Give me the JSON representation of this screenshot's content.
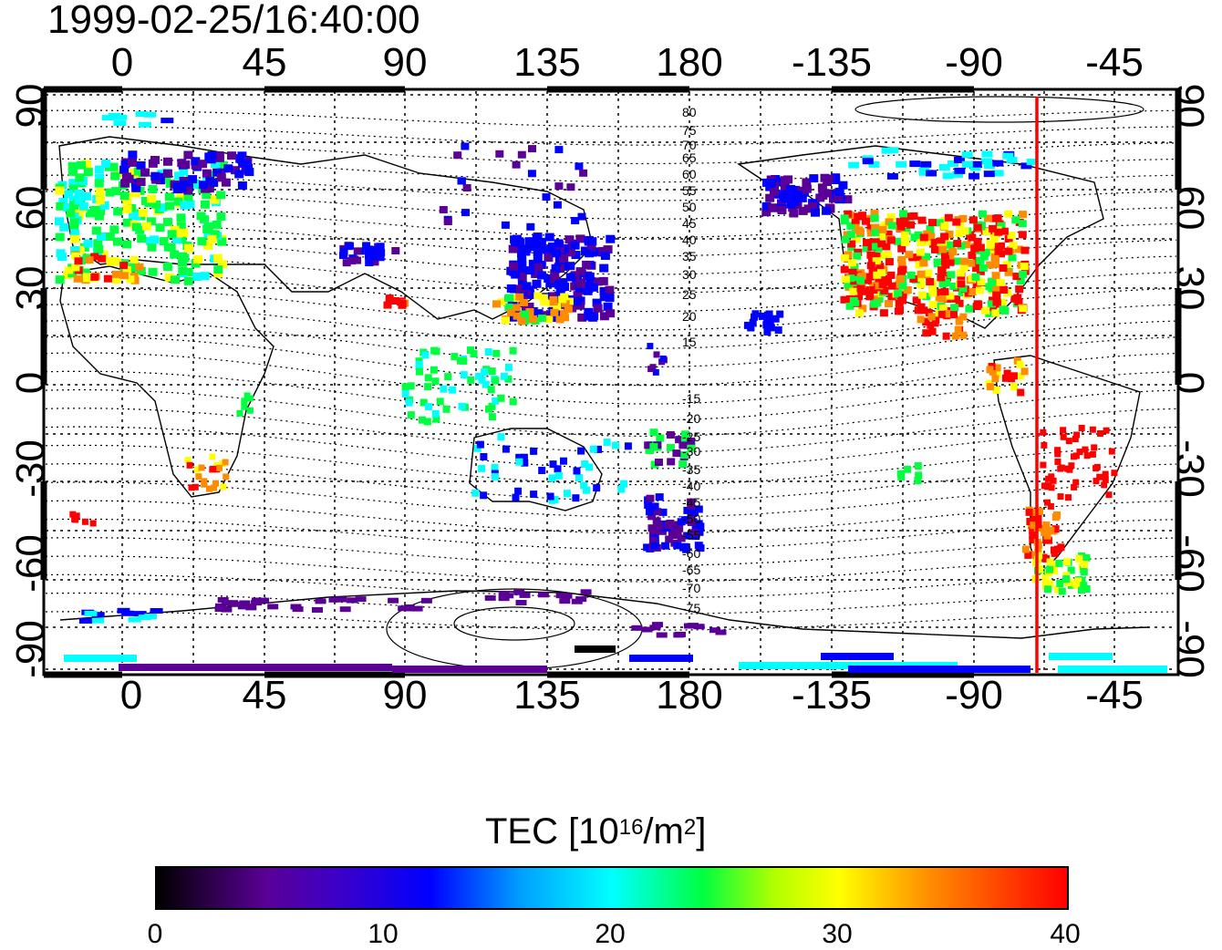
{
  "timestamp": "1999-02-25/16:40:00",
  "axes": {
    "top_labels": [
      "0",
      "45",
      "90",
      "135",
      "180",
      "-135",
      "-90",
      "-45"
    ],
    "bottom_labels": [
      "0",
      "45",
      "90",
      "135",
      "180",
      "-135",
      "-90",
      "-45"
    ],
    "left_labels": [
      "90",
      "60",
      "30",
      "0",
      "-30",
      "-60",
      "-90"
    ],
    "right_labels": [
      "90",
      "60",
      "30",
      "0",
      "-30",
      "-60",
      "-90"
    ]
  },
  "contour_labels": {
    "north": [
      "80",
      "75",
      "70",
      "65",
      "60",
      "55",
      "50",
      "45",
      "40",
      "35",
      "30",
      "25",
      "20",
      "15"
    ],
    "south": [
      "-15",
      "-20",
      "-25",
      "-30",
      "-35",
      "-40",
      "-45",
      "-50",
      "-55",
      "-60",
      "-65",
      "-70",
      "-75"
    ]
  },
  "marker": {
    "longitude": -71,
    "color": "#ff0000"
  },
  "colorbar": {
    "title_main": "TEC  [10",
    "title_sup1": "16",
    "title_mid": "/m",
    "title_sup2": "2",
    "title_end": "]",
    "ticks": [
      "0",
      "10",
      "20",
      "30",
      "40"
    ],
    "min": 0,
    "max": 40
  },
  "colors": {
    "low": "#000000",
    "purple": "#5a0096",
    "blue": "#0000ff",
    "cyan": "#00ffff",
    "green": "#00ff40",
    "yellow": "#ffff00",
    "orange": "#ff8c00",
    "high": "#ff0000"
  }
}
